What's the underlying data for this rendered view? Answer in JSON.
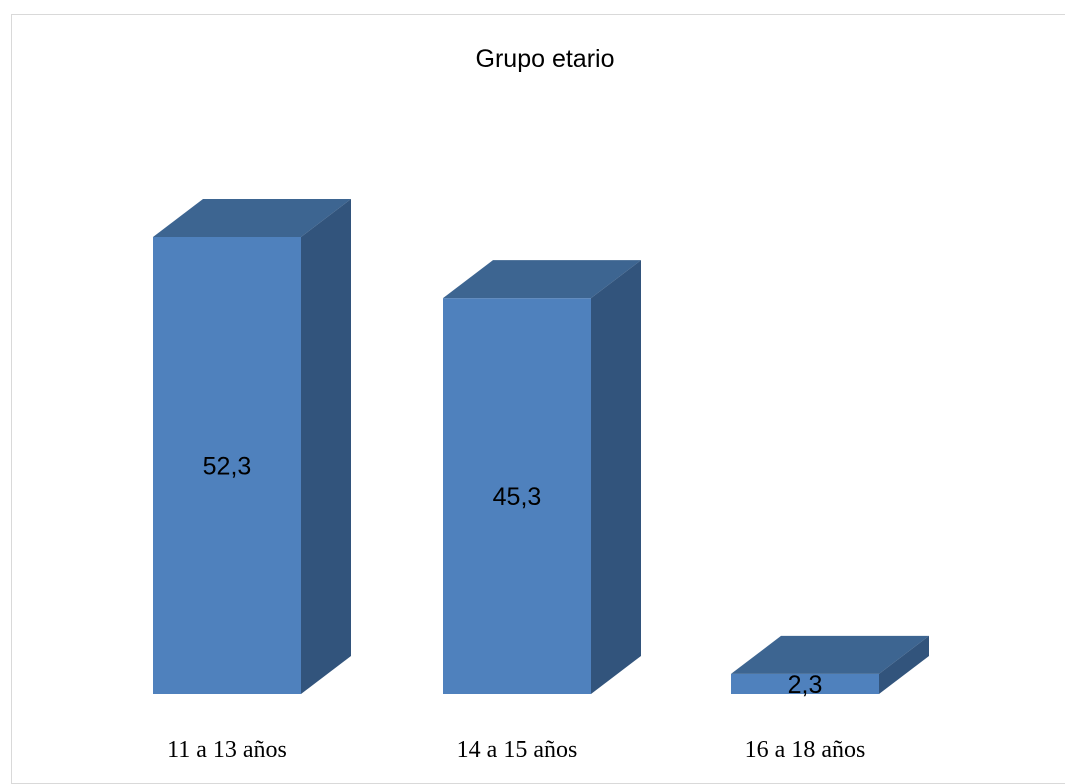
{
  "chart_data": {
    "type": "bar",
    "title": "Grupo etario",
    "categories": [
      "11 a 13 años",
      "14 a 15 años",
      "16 a 18 años"
    ],
    "values": [
      52.3,
      45.3,
      2.3
    ],
    "value_labels": [
      "52,3",
      "45,3",
      "2,3"
    ],
    "xlabel": "",
    "ylabel": "",
    "ylim": [
      0,
      52.3
    ],
    "grid": false,
    "legend": "none",
    "style": "3d-column",
    "colors": {
      "front": "#4f81bd",
      "top": "#3d6591",
      "side": "#32547c"
    }
  }
}
